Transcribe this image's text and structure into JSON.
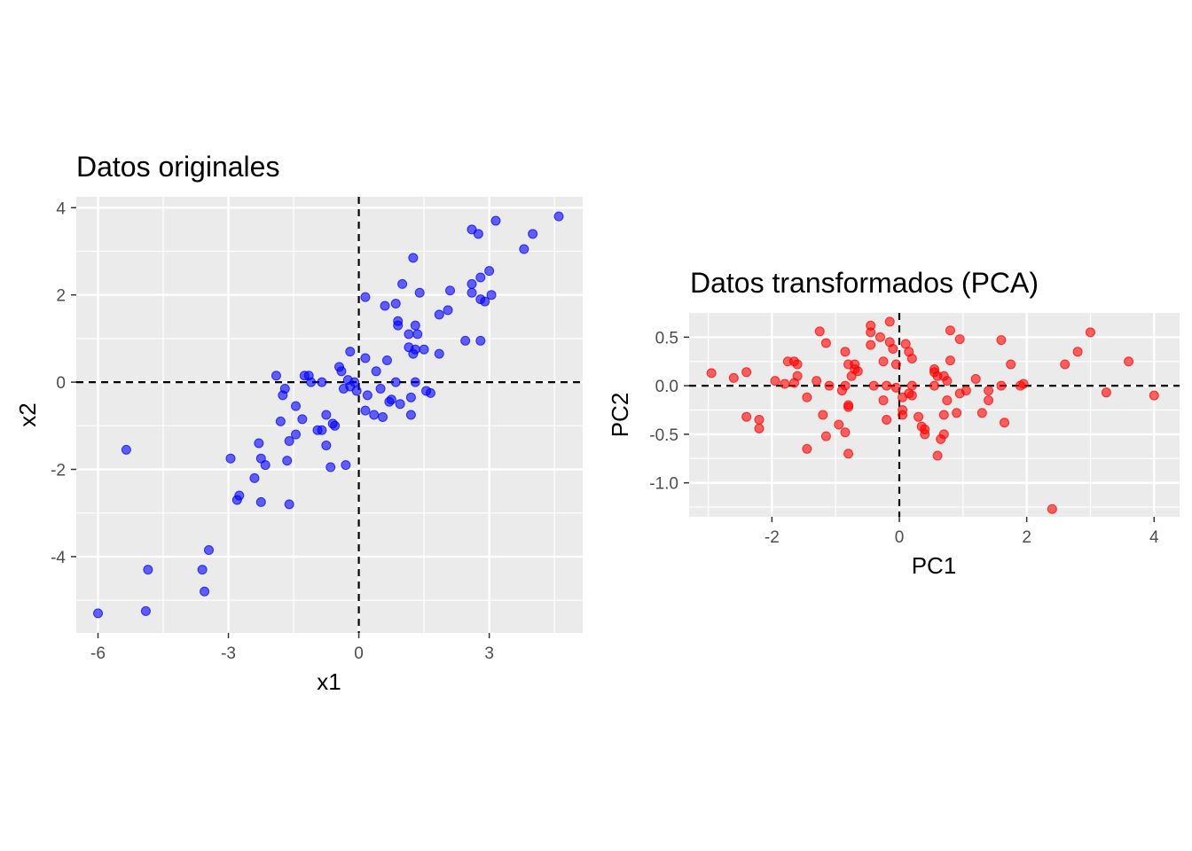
{
  "chart_data": [
    {
      "type": "scatter",
      "title": "Datos originales",
      "xlabel": "x1",
      "ylabel": "x2",
      "xlim": [
        -6.5,
        5.15
      ],
      "ylim": [
        -5.75,
        4.25
      ],
      "xticks": [
        -6,
        -3,
        0,
        3
      ],
      "yticks": [
        -4,
        -2,
        0,
        2,
        4
      ],
      "xtick_labels": [
        "-6",
        "-3",
        "0",
        "3"
      ],
      "ytick_labels": [
        "-4",
        "-2",
        "0",
        "2",
        "4"
      ],
      "reference_lines": {
        "x": 0,
        "y": 0,
        "style": "dashed"
      },
      "grid": true,
      "point_color": "#0000FF",
      "points": [
        [
          -6.0,
          -5.3
        ],
        [
          -5.35,
          -1.55
        ],
        [
          -4.9,
          -5.25
        ],
        [
          -4.85,
          -4.3
        ],
        [
          -3.6,
          -4.3
        ],
        [
          -3.55,
          -4.8
        ],
        [
          -3.45,
          -3.85
        ],
        [
          -2.95,
          -1.75
        ],
        [
          -2.8,
          -2.7
        ],
        [
          -2.75,
          -2.6
        ],
        [
          -2.4,
          -2.2
        ],
        [
          -2.3,
          -1.4
        ],
        [
          -2.25,
          -1.75
        ],
        [
          -2.25,
          -2.75
        ],
        [
          -2.15,
          -1.9
        ],
        [
          -1.9,
          0.15
        ],
        [
          -1.8,
          -0.9
        ],
        [
          -1.75,
          -0.3
        ],
        [
          -1.7,
          -0.15
        ],
        [
          -1.65,
          -1.8
        ],
        [
          -1.6,
          -1.35
        ],
        [
          -1.6,
          -2.8
        ],
        [
          -1.45,
          -0.55
        ],
        [
          -1.45,
          -1.2
        ],
        [
          -1.3,
          -0.85
        ],
        [
          -1.25,
          0.15
        ],
        [
          -1.15,
          0.15
        ],
        [
          -1.1,
          0.0
        ],
        [
          -0.95,
          -1.1
        ],
        [
          -0.85,
          -1.1
        ],
        [
          -0.85,
          0.0
        ],
        [
          -0.75,
          -0.75
        ],
        [
          -0.75,
          -1.45
        ],
        [
          -0.65,
          -1.95
        ],
        [
          -0.6,
          -0.95
        ],
        [
          -0.55,
          -1.0
        ],
        [
          -0.45,
          0.35
        ],
        [
          -0.4,
          0.25
        ],
        [
          -0.35,
          -0.15
        ],
        [
          -0.3,
          -1.9
        ],
        [
          -0.25,
          0.05
        ],
        [
          -0.2,
          -0.1
        ],
        [
          -0.2,
          0.7
        ],
        [
          -0.1,
          0.0
        ],
        [
          -0.05,
          -0.2
        ],
        [
          0.15,
          -0.65
        ],
        [
          0.15,
          1.95
        ],
        [
          0.15,
          0.55
        ],
        [
          0.2,
          -0.3
        ],
        [
          0.35,
          -0.75
        ],
        [
          0.4,
          0.25
        ],
        [
          0.5,
          -0.15
        ],
        [
          0.55,
          -0.8
        ],
        [
          0.6,
          1.75
        ],
        [
          0.65,
          0.5
        ],
        [
          0.7,
          -0.45
        ],
        [
          0.75,
          -0.4
        ],
        [
          0.85,
          0.0
        ],
        [
          0.85,
          1.8
        ],
        [
          0.9,
          1.3
        ],
        [
          0.9,
          1.4
        ],
        [
          0.95,
          -0.5
        ],
        [
          1.0,
          2.25
        ],
        [
          1.15,
          0.8
        ],
        [
          1.15,
          1.1
        ],
        [
          1.2,
          -0.35
        ],
        [
          1.2,
          -0.75
        ],
        [
          1.25,
          2.85
        ],
        [
          1.25,
          0.65
        ],
        [
          1.3,
          1.3
        ],
        [
          1.3,
          0.75
        ],
        [
          1.3,
          0.0
        ],
        [
          1.35,
          1.1
        ],
        [
          1.4,
          2.05
        ],
        [
          1.5,
          0.75
        ],
        [
          1.55,
          -0.2
        ],
        [
          1.65,
          -0.25
        ],
        [
          1.85,
          1.55
        ],
        [
          1.85,
          0.65
        ],
        [
          2.05,
          1.65
        ],
        [
          2.1,
          2.1
        ],
        [
          2.45,
          0.95
        ],
        [
          2.6,
          3.5
        ],
        [
          2.6,
          2.05
        ],
        [
          2.6,
          2.25
        ],
        [
          2.75,
          3.4
        ],
        [
          2.8,
          0.95
        ],
        [
          2.8,
          1.9
        ],
        [
          2.8,
          2.4
        ],
        [
          2.9,
          1.85
        ],
        [
          3.0,
          2.55
        ],
        [
          3.05,
          2.0
        ],
        [
          3.15,
          3.7
        ],
        [
          3.8,
          3.05
        ],
        [
          4.0,
          3.4
        ],
        [
          4.6,
          3.8
        ]
      ]
    },
    {
      "type": "scatter",
      "title": "Datos transformados (PCA)",
      "xlabel": "PC1",
      "ylabel": "PC2",
      "xlim": [
        -3.3,
        4.4
      ],
      "ylim": [
        -1.35,
        0.75
      ],
      "xticks": [
        -2,
        0,
        2,
        4
      ],
      "yticks": [
        0.5,
        0.0,
        -0.5,
        -1.0
      ],
      "xtick_labels": [
        "-2",
        "0",
        "2",
        "4"
      ],
      "ytick_labels": [
        "0.5",
        "0.0",
        "-0.5",
        "-1.0"
      ],
      "reference_lines": {
        "x": 0,
        "y": 0,
        "style": "dashed"
      },
      "grid": true,
      "point_color": "#FF0000",
      "points": [
        [
          -2.95,
          0.13
        ],
        [
          -2.6,
          0.08
        ],
        [
          -2.4,
          0.14
        ],
        [
          -2.4,
          -0.32
        ],
        [
          -2.2,
          -0.35
        ],
        [
          -2.2,
          -0.44
        ],
        [
          -1.95,
          0.05
        ],
        [
          -1.8,
          0.02
        ],
        [
          -1.75,
          0.25
        ],
        [
          -1.65,
          0.25
        ],
        [
          -1.6,
          0.22
        ],
        [
          -1.6,
          0.1
        ],
        [
          -1.65,
          0.03
        ],
        [
          -1.45,
          -0.65
        ],
        [
          -1.45,
          -0.12
        ],
        [
          -1.3,
          0.05
        ],
        [
          -1.25,
          0.56
        ],
        [
          -1.2,
          -0.3
        ],
        [
          -1.15,
          0.44
        ],
        [
          -1.15,
          -0.52
        ],
        [
          -1.1,
          0.0
        ],
        [
          -0.95,
          -0.4
        ],
        [
          -0.9,
          -0.05
        ],
        [
          -0.85,
          0.35
        ],
        [
          -0.85,
          0.0
        ],
        [
          -0.85,
          -0.48
        ],
        [
          -0.8,
          -0.22
        ],
        [
          -0.8,
          0.22
        ],
        [
          -0.8,
          -0.2
        ],
        [
          -0.8,
          -0.7
        ],
        [
          -0.75,
          0.1
        ],
        [
          -0.7,
          0.22
        ],
        [
          -0.7,
          0.17
        ],
        [
          -0.65,
          0.15
        ],
        [
          -0.45,
          0.62
        ],
        [
          -0.45,
          0.55
        ],
        [
          -0.45,
          0.42
        ],
        [
          -0.4,
          0.0
        ],
        [
          -0.3,
          0.5
        ],
        [
          -0.25,
          -0.15
        ],
        [
          -0.25,
          0.25
        ],
        [
          -0.2,
          0.0
        ],
        [
          -0.2,
          -0.35
        ],
        [
          -0.15,
          0.66
        ],
        [
          -0.15,
          0.45
        ],
        [
          -0.1,
          0.38
        ],
        [
          -0.05,
          0.22
        ],
        [
          -0.05,
          -0.02
        ],
        [
          0.05,
          -0.12
        ],
        [
          0.05,
          -0.25
        ],
        [
          0.05,
          -0.3
        ],
        [
          0.1,
          0.43
        ],
        [
          0.15,
          -0.08
        ],
        [
          0.15,
          0.35
        ],
        [
          0.2,
          0.28
        ],
        [
          0.2,
          0.0
        ],
        [
          0.2,
          -0.1
        ],
        [
          0.3,
          -0.32
        ],
        [
          0.35,
          -0.42
        ],
        [
          0.4,
          -0.45
        ],
        [
          0.4,
          -0.5
        ],
        [
          0.55,
          0.14
        ],
        [
          0.55,
          0.0
        ],
        [
          0.55,
          0.17
        ],
        [
          0.6,
          0.1
        ],
        [
          0.6,
          -0.72
        ],
        [
          0.65,
          -0.55
        ],
        [
          0.7,
          -0.5
        ],
        [
          0.7,
          -0.3
        ],
        [
          0.7,
          0.1
        ],
        [
          0.75,
          0.05
        ],
        [
          0.75,
          -0.15
        ],
        [
          0.8,
          0.57
        ],
        [
          0.8,
          0.26
        ],
        [
          0.9,
          -0.28
        ],
        [
          0.95,
          0.48
        ],
        [
          0.95,
          -0.08
        ],
        [
          1.05,
          -0.05
        ],
        [
          1.2,
          0.07
        ],
        [
          1.3,
          -0.28
        ],
        [
          1.4,
          -0.05
        ],
        [
          1.4,
          -0.15
        ],
        [
          1.6,
          0.47
        ],
        [
          1.6,
          0.0
        ],
        [
          1.65,
          -0.38
        ],
        [
          1.75,
          0.22
        ],
        [
          1.9,
          0.0
        ],
        [
          1.95,
          0.02
        ],
        [
          2.4,
          -1.27
        ],
        [
          2.6,
          0.22
        ],
        [
          2.8,
          0.35
        ],
        [
          3.0,
          0.55
        ],
        [
          3.25,
          -0.07
        ],
        [
          3.6,
          0.25
        ],
        [
          4.0,
          -0.1
        ]
      ]
    }
  ]
}
